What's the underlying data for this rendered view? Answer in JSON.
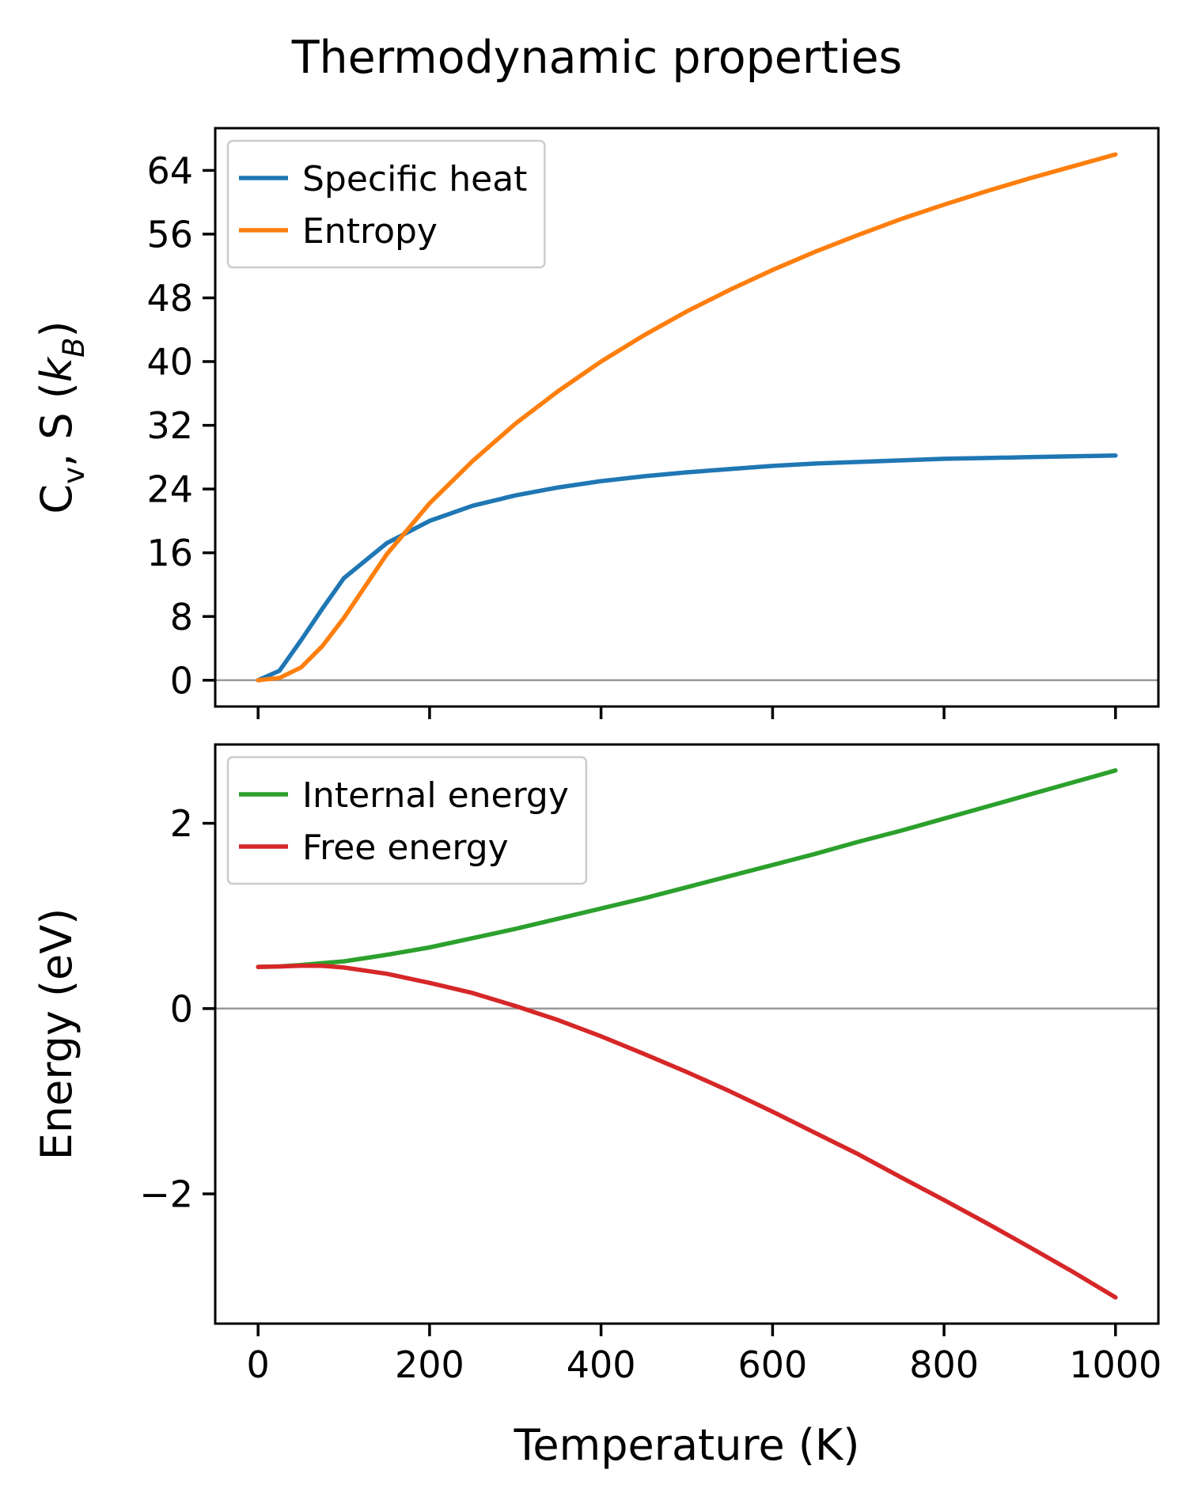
{
  "title": "Thermodynamic properties",
  "colors": {
    "specific_heat": "#1f77b4",
    "entropy": "#ff7f0e",
    "internal_energy": "#2ca02c",
    "free_energy": "#d62728",
    "zero_line": "#9a9a9a",
    "legend_border": "#cccccc",
    "frame": "#000000",
    "background": "#ffffff"
  },
  "chart_data": [
    {
      "type": "line",
      "id": "heat-entropy",
      "ylabel": "Cv, S (kB)",
      "ylabel_parts": [
        {
          "t": "C"
        },
        {
          "t": "v",
          "sub": true
        },
        {
          "t": ", S ("
        },
        {
          "t": "k",
          "italic": true
        },
        {
          "t": "B",
          "sub": true,
          "italic": true
        },
        {
          "t": ")"
        }
      ],
      "x": [
        0,
        25,
        50,
        75,
        100,
        150,
        200,
        250,
        300,
        350,
        400,
        450,
        500,
        550,
        600,
        650,
        700,
        750,
        800,
        850,
        900,
        950,
        1000
      ],
      "series": [
        {
          "name": "Specific heat",
          "color_key": "specific_heat",
          "values": [
            0,
            1.2,
            5.0,
            9.0,
            12.8,
            17.2,
            20.0,
            21.9,
            23.2,
            24.2,
            25.0,
            25.6,
            26.1,
            26.5,
            26.9,
            27.2,
            27.4,
            27.6,
            27.8,
            27.9,
            28.0,
            28.1,
            28.2
          ]
        },
        {
          "name": "Entropy",
          "color_key": "entropy",
          "values": [
            0,
            0.3,
            1.6,
            4.3,
            7.8,
            15.8,
            22.2,
            27.5,
            32.2,
            36.3,
            40.0,
            43.3,
            46.3,
            49.0,
            51.5,
            53.8,
            55.9,
            57.9,
            59.7,
            61.4,
            63.0,
            64.5,
            66.0
          ]
        }
      ],
      "xlim": [
        -50,
        1050
      ],
      "ylim": [
        -3.3,
        69.3
      ],
      "xticks": [
        0,
        200,
        400,
        600,
        800,
        1000
      ],
      "xtick_labels": false,
      "yticks": [
        0,
        8,
        16,
        24,
        32,
        40,
        48,
        56,
        64
      ],
      "zero_line": true,
      "legend": "upper left",
      "grid": false
    },
    {
      "type": "line",
      "id": "energies",
      "xlabel": "Temperature (K)",
      "ylabel": "Energy (eV)",
      "ylabel_parts": [
        {
          "t": "Energy (eV)"
        }
      ],
      "x": [
        0,
        25,
        50,
        75,
        100,
        150,
        200,
        250,
        300,
        350,
        400,
        450,
        500,
        550,
        600,
        650,
        700,
        750,
        800,
        850,
        900,
        950,
        1000
      ],
      "series": [
        {
          "name": "Internal energy",
          "color_key": "internal_energy",
          "values": [
            0.45,
            0.455,
            0.47,
            0.49,
            0.51,
            0.58,
            0.66,
            0.76,
            0.86,
            0.97,
            1.08,
            1.19,
            1.31,
            1.43,
            1.55,
            1.67,
            1.8,
            1.92,
            2.05,
            2.18,
            2.31,
            2.44,
            2.57
          ]
        },
        {
          "name": "Free energy",
          "color_key": "free_energy",
          "values": [
            0.45,
            0.454,
            0.463,
            0.462,
            0.443,
            0.376,
            0.277,
            0.168,
            0.028,
            -0.125,
            -0.299,
            -0.489,
            -0.685,
            -0.892,
            -1.113,
            -1.343,
            -1.572,
            -1.822,
            -2.066,
            -2.317,
            -2.576,
            -2.84,
            -3.117
          ]
        }
      ],
      "xlim": [
        -50,
        1050
      ],
      "ylim": [
        -3.4,
        2.85
      ],
      "xticks": [
        0,
        200,
        400,
        600,
        800,
        1000
      ],
      "xtick_labels": true,
      "yticks": [
        -2,
        0,
        2
      ],
      "zero_line": true,
      "legend": "upper left",
      "grid": false
    }
  ]
}
